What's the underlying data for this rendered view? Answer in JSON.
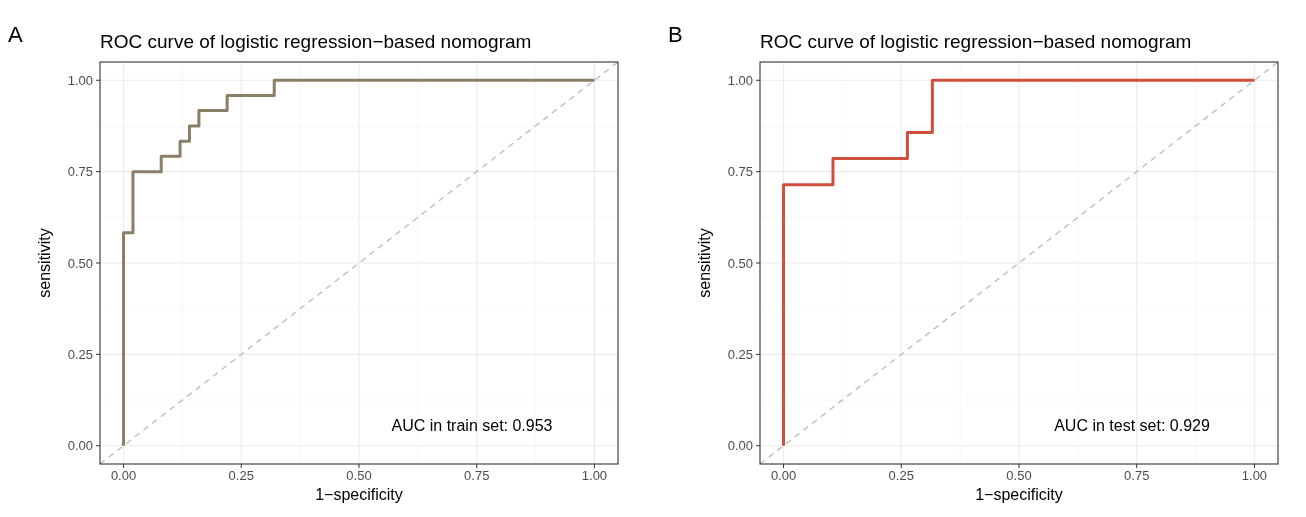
{
  "chart_data": [
    {
      "type": "step",
      "title": "ROC curve of logistic regression−based nomogram",
      "xlabel": "1−specificity",
      "ylabel": "sensitivity",
      "xlim": [
        -0.05,
        1.05
      ],
      "ylim": [
        -0.05,
        1.05
      ],
      "xticks": [
        {
          "value": 0,
          "label": "0.00"
        },
        {
          "value": 0.25,
          "label": "0.25"
        },
        {
          "value": 0.5,
          "label": "0.50"
        },
        {
          "value": 0.75,
          "label": "0.75"
        },
        {
          "value": 1,
          "label": "1.00"
        }
      ],
      "yticks": [
        {
          "value": 0,
          "label": "0.00"
        },
        {
          "value": 0.25,
          "label": "0.25"
        },
        {
          "value": 0.5,
          "label": "0.50"
        },
        {
          "value": 0.75,
          "label": "0.75"
        },
        {
          "value": 1,
          "label": "1.00"
        }
      ],
      "grid": true,
      "annotations": [
        "A",
        "AUC in train set: 0.953"
      ],
      "series": [
        {
          "type": "line",
          "color": "#bbbbbb",
          "line_style": "dashed",
          "x": [
            -0.05,
            1.05
          ],
          "values": [
            -0.05,
            1.05
          ]
        },
        {
          "color": "#8b7e66",
          "x": [
            0,
            0,
            0.02,
            0.08,
            0.12,
            0.14,
            0.16,
            0.22,
            0.32,
            1
          ],
          "values": [
            0,
            0.583,
            0.75,
            0.792,
            0.833,
            0.875,
            0.917,
            0.958,
            1,
            1
          ]
        }
      ]
    },
    {
      "type": "step",
      "title": "ROC curve of logistic regression−based nomogram",
      "xlabel": "1−specificity",
      "ylabel": "sensitivity",
      "xlim": [
        -0.05,
        1.05
      ],
      "ylim": [
        -0.05,
        1.05
      ],
      "xticks": [
        {
          "value": 0,
          "label": "0.00"
        },
        {
          "value": 0.25,
          "label": "0.25"
        },
        {
          "value": 0.5,
          "label": "0.50"
        },
        {
          "value": 0.75,
          "label": "0.75"
        },
        {
          "value": 1,
          "label": "1.00"
        }
      ],
      "yticks": [
        {
          "value": 0,
          "label": "0.00"
        },
        {
          "value": 0.25,
          "label": "0.25"
        },
        {
          "value": 0.5,
          "label": "0.50"
        },
        {
          "value": 0.75,
          "label": "0.75"
        },
        {
          "value": 1,
          "label": "1.00"
        }
      ],
      "grid": true,
      "annotations": [
        "B",
        "AUC in test set: 0.929"
      ],
      "series": [
        {
          "type": "line",
          "color": "#bbbbbb",
          "line_style": "dashed",
          "x": [
            -0.05,
            1.05
          ],
          "values": [
            -0.05,
            1.05
          ]
        },
        {
          "color": "#cf4f3c",
          "x": [
            0,
            0,
            0.105,
            0.263,
            0.316,
            1
          ],
          "values": [
            0,
            0.714,
            0.786,
            0.857,
            1,
            1
          ]
        }
      ]
    }
  ]
}
